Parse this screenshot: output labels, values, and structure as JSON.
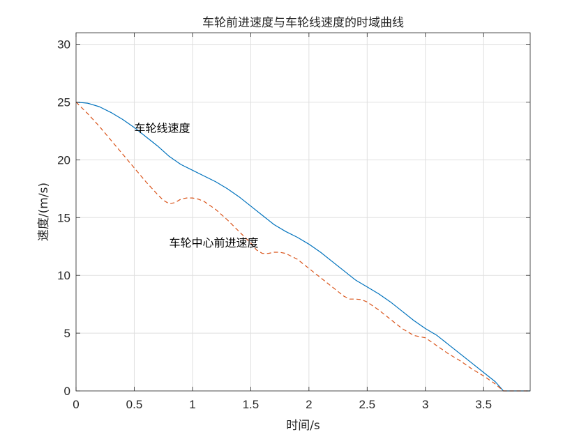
{
  "chart_data": {
    "type": "line",
    "title": "车轮前进速度与车轮线速度的时域曲线",
    "xlabel": "时间/s",
    "ylabel": "速度/(m/s)",
    "xlim": [
      0,
      3.9
    ],
    "ylim": [
      0,
      31
    ],
    "xticks": [
      0,
      0.5,
      1,
      1.5,
      2,
      2.5,
      3,
      3.5
    ],
    "xtick_labels": [
      "0",
      "0.5",
      "1",
      "1.5",
      "2",
      "2.5",
      "3",
      "3.5"
    ],
    "yticks": [
      0,
      5,
      10,
      15,
      20,
      25,
      30
    ],
    "ytick_labels": [
      "0",
      "5",
      "10",
      "15",
      "20",
      "25",
      "30"
    ],
    "grid": true,
    "legend": "none",
    "series": [
      {
        "color": "#0072BD",
        "style": "solid",
        "x": [
          0,
          0.1,
          0.2,
          0.3,
          0.4,
          0.5,
          0.6,
          0.7,
          0.8,
          0.9,
          1.0,
          1.1,
          1.2,
          1.3,
          1.4,
          1.5,
          1.6,
          1.7,
          1.8,
          1.9,
          2.0,
          2.1,
          2.2,
          2.3,
          2.4,
          2.5,
          2.6,
          2.7,
          2.8,
          2.9,
          3.0,
          3.1,
          3.2,
          3.3,
          3.4,
          3.5,
          3.6,
          3.67,
          3.75,
          3.9
        ],
        "y": [
          25,
          24.9,
          24.6,
          24.1,
          23.5,
          22.8,
          22.0,
          21.2,
          20.3,
          19.6,
          19.1,
          18.6,
          18.1,
          17.5,
          16.8,
          16.0,
          15.2,
          14.4,
          13.8,
          13.3,
          12.7,
          12.0,
          11.2,
          10.4,
          9.6,
          9.0,
          8.4,
          7.7,
          6.9,
          6.1,
          5.4,
          4.8,
          4.0,
          3.2,
          2.4,
          1.6,
          0.8,
          0,
          0,
          0
        ]
      },
      {
        "color": "#D95319",
        "style": "dashed",
        "x": [
          0,
          0.1,
          0.2,
          0.3,
          0.4,
          0.5,
          0.6,
          0.7,
          0.75,
          0.8,
          0.85,
          0.9,
          0.95,
          1.0,
          1.05,
          1.1,
          1.2,
          1.3,
          1.4,
          1.5,
          1.55,
          1.6,
          1.65,
          1.7,
          1.75,
          1.8,
          1.9,
          2.0,
          2.1,
          2.2,
          2.3,
          2.35,
          2.4,
          2.45,
          2.5,
          2.6,
          2.7,
          2.8,
          2.9,
          2.95,
          3.0,
          3.1,
          3.2,
          3.3,
          3.4,
          3.5,
          3.6,
          3.67,
          3.75,
          3.9
        ],
        "y": [
          25,
          24.0,
          22.9,
          21.7,
          20.5,
          19.3,
          18.1,
          17.0,
          16.5,
          16.2,
          16.3,
          16.6,
          16.7,
          16.7,
          16.6,
          16.4,
          15.7,
          14.8,
          13.8,
          12.8,
          12.2,
          11.9,
          11.9,
          12.0,
          12.0,
          11.9,
          11.4,
          10.6,
          9.8,
          9.0,
          8.2,
          7.95,
          7.95,
          7.9,
          7.7,
          7.0,
          6.2,
          5.4,
          4.8,
          4.7,
          4.6,
          3.9,
          3.2,
          2.6,
          1.9,
          1.3,
          0.6,
          0,
          0,
          0
        ]
      }
    ],
    "annotations": [
      {
        "text": "车轮线速度",
        "x": 0.5,
        "y": 22.7
      },
      {
        "text": "车轮中心前进速度",
        "x": 0.8,
        "y": 12.8
      }
    ]
  }
}
